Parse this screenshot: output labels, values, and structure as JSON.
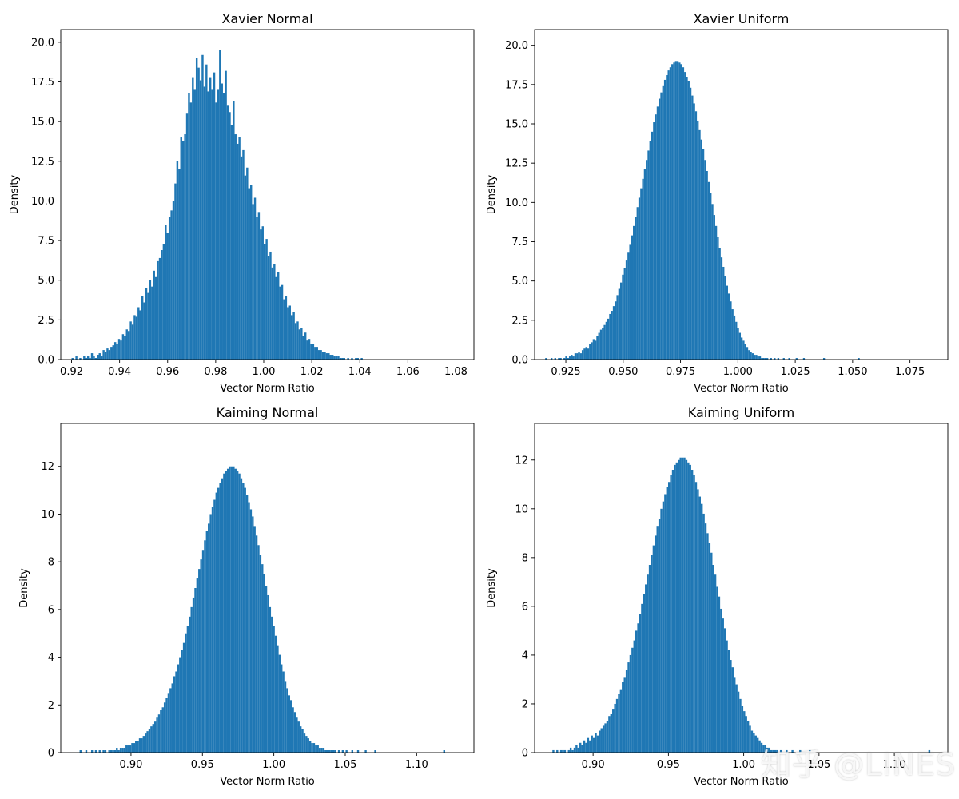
{
  "figure": {
    "bar_color": "#1f77b4",
    "watermark": "知乎 @LINES"
  },
  "chart_data": [
    {
      "type": "bar",
      "title": "Xavier Normal",
      "xlabel": "Vector Norm Ratio",
      "ylabel": "Density",
      "xlim": [
        0.9155,
        1.0875
      ],
      "ylim": [
        0,
        20.8
      ],
      "xticks": [
        0.92,
        0.94,
        0.96,
        0.98,
        1.0,
        1.02,
        1.04,
        1.06,
        1.08
      ],
      "xtick_labels": [
        "0.92",
        "0.94",
        "0.96",
        "0.98",
        "1.00",
        "1.02",
        "1.04",
        "1.06",
        "1.08"
      ],
      "yticks": [
        0,
        2.5,
        5,
        7.5,
        10,
        12.5,
        15,
        17.5,
        20
      ],
      "ytick_labels": [
        "0.0",
        "2.5",
        "5.0",
        "7.5",
        "10.0",
        "12.5",
        "15.0",
        "17.5",
        "20.0"
      ],
      "bins": {
        "start": 0.92,
        "width": 0.000808
      },
      "values": [
        0.1,
        0.0,
        0.2,
        0.0,
        0.1,
        0.0,
        0.2,
        0.1,
        0.2,
        0.1,
        0.4,
        0.2,
        0.1,
        0.3,
        0.4,
        0.2,
        0.6,
        0.5,
        0.7,
        0.6,
        0.8,
        0.9,
        1.1,
        1.0,
        1.3,
        1.2,
        1.6,
        1.5,
        1.9,
        1.8,
        2.4,
        2.2,
        2.8,
        2.7,
        3.3,
        3.1,
        4.0,
        3.6,
        4.5,
        4.2,
        5.0,
        4.6,
        5.6,
        5.2,
        6.2,
        6.4,
        6.9,
        7.3,
        8.5,
        8.0,
        9.0,
        9.4,
        10.0,
        11.1,
        12.5,
        12.0,
        14.0,
        13.8,
        14.2,
        15.5,
        16.8,
        16.2,
        17.8,
        17.0,
        19.0,
        18.4,
        17.6,
        19.2,
        17.2,
        18.6,
        16.9,
        17.8,
        17.0,
        18.1,
        16.2,
        17.0,
        19.5,
        17.4,
        16.8,
        18.2,
        16.0,
        15.6,
        14.8,
        16.3,
        14.2,
        13.6,
        14.0,
        12.8,
        13.2,
        11.6,
        12.1,
        10.8,
        11.0,
        9.8,
        10.2,
        9.0,
        9.3,
        8.2,
        8.4,
        7.3,
        7.6,
        6.5,
        6.8,
        5.8,
        6.0,
        5.2,
        5.5,
        4.6,
        4.7,
        3.8,
        4.0,
        3.3,
        3.4,
        2.8,
        3.0,
        2.3,
        2.4,
        1.9,
        2.0,
        1.5,
        1.7,
        1.2,
        1.3,
        1.0,
        1.0,
        0.8,
        0.8,
        0.6,
        0.6,
        0.5,
        0.5,
        0.4,
        0.4,
        0.3,
        0.3,
        0.2,
        0.2,
        0.2,
        0.1,
        0.1,
        0.1,
        0.0,
        0.1,
        0.0,
        0.1,
        0.0,
        0.1,
        0.1,
        0.0,
        0.1
      ]
    },
    {
      "type": "bar",
      "title": "Xavier Uniform",
      "xlabel": "Vector Norm Ratio",
      "ylabel": "Density",
      "xlim": [
        0.9114,
        1.0915
      ],
      "ylim": [
        0,
        21.0
      ],
      "xticks": [
        0.925,
        0.95,
        0.975,
        1.0,
        1.025,
        1.05,
        1.075
      ],
      "xtick_labels": [
        "0.925",
        "0.950",
        "0.975",
        "1.000",
        "1.025",
        "1.050",
        "1.075"
      ],
      "yticks": [
        0,
        2.5,
        5,
        7.5,
        10,
        12.5,
        15,
        17.5,
        20
      ],
      "ytick_labels": [
        "0.0",
        "2.5",
        "5.0",
        "7.5",
        "10.0",
        "12.5",
        "15.0",
        "17.5",
        "20.0"
      ],
      "bins": {
        "start": 0.916,
        "width": 0.000797
      },
      "values": [
        0.1,
        0.0,
        0.0,
        0.1,
        0.0,
        0.1,
        0.0,
        0.1,
        0.1,
        0.0,
        0.1,
        0.2,
        0.1,
        0.2,
        0.3,
        0.2,
        0.4,
        0.4,
        0.5,
        0.4,
        0.6,
        0.7,
        0.8,
        0.7,
        1.0,
        1.1,
        1.3,
        1.2,
        1.5,
        1.7,
        1.9,
        2.0,
        2.2,
        2.4,
        2.6,
        2.9,
        3.1,
        3.4,
        3.7,
        4.1,
        4.5,
        4.9,
        5.4,
        5.8,
        6.3,
        6.8,
        7.3,
        7.9,
        8.5,
        9.1,
        9.7,
        10.3,
        10.9,
        11.5,
        12.1,
        12.7,
        13.3,
        13.9,
        14.5,
        15.1,
        15.6,
        16.1,
        16.6,
        17.0,
        17.4,
        17.8,
        18.1,
        18.4,
        18.6,
        18.8,
        18.9,
        19.0,
        19.0,
        18.9,
        18.8,
        18.6,
        18.3,
        18.0,
        17.7,
        17.3,
        16.8,
        16.3,
        15.8,
        15.2,
        14.6,
        14.0,
        13.4,
        12.7,
        12.0,
        11.3,
        10.6,
        9.9,
        9.2,
        8.5,
        7.8,
        7.1,
        6.5,
        5.9,
        5.3,
        4.7,
        4.2,
        3.7,
        3.2,
        2.8,
        2.4,
        2.0,
        1.7,
        1.4,
        1.2,
        1.0,
        0.8,
        0.6,
        0.5,
        0.4,
        0.3,
        0.3,
        0.2,
        0.2,
        0.1,
        0.1,
        0.1,
        0.1,
        0.0,
        0.1,
        0.0,
        0.1,
        0.0,
        0.1,
        0.0,
        0.0,
        0.1,
        0.0,
        0.0,
        0.1,
        0.0,
        0.0,
        0.0,
        0.1,
        0.0,
        0.0,
        0.0,
        0.1,
        0.0,
        0.0,
        0.0,
        0.0,
        0.0,
        0.0,
        0.0,
        0.0,
        0.0,
        0.0,
        0.1,
        0.0,
        0.0,
        0.0,
        0.0,
        0.0,
        0.0,
        0.0,
        0.0,
        0.0,
        0.0,
        0.0,
        0.0,
        0.0,
        0.0,
        0.0,
        0.0,
        0.0,
        0.0,
        0.1
      ]
    },
    {
      "type": "bar",
      "title": "Kaiming Normal",
      "xlabel": "Vector Norm Ratio",
      "ylabel": "Density",
      "xlim": [
        0.8508,
        1.1401
      ],
      "ylim": [
        0,
        13.8
      ],
      "xticks": [
        0.9,
        0.95,
        1.0,
        1.05,
        1.1
      ],
      "xtick_labels": [
        "0.90",
        "0.95",
        "1.00",
        "1.05",
        "1.10"
      ],
      "yticks": [
        0,
        2,
        4,
        6,
        8,
        10,
        12
      ],
      "ytick_labels": [
        "0",
        "2",
        "4",
        "6",
        "8",
        "10",
        "12"
      ],
      "bins": {
        "start": 0.864,
        "width": 0.00134
      },
      "values": [
        0.1,
        0.0,
        0.0,
        0.1,
        0.0,
        0.0,
        0.1,
        0.0,
        0.1,
        0.0,
        0.1,
        0.0,
        0.1,
        0.1,
        0.0,
        0.1,
        0.1,
        0.1,
        0.1,
        0.2,
        0.1,
        0.2,
        0.2,
        0.2,
        0.3,
        0.3,
        0.3,
        0.4,
        0.4,
        0.5,
        0.5,
        0.6,
        0.6,
        0.7,
        0.8,
        0.9,
        1.0,
        1.1,
        1.2,
        1.3,
        1.5,
        1.6,
        1.8,
        1.9,
        2.1,
        2.3,
        2.5,
        2.7,
        2.9,
        3.2,
        3.4,
        3.7,
        4.0,
        4.3,
        4.6,
        5.0,
        5.3,
        5.7,
        6.1,
        6.5,
        6.9,
        7.3,
        7.7,
        8.1,
        8.5,
        8.9,
        9.3,
        9.6,
        10.0,
        10.3,
        10.6,
        10.9,
        11.1,
        11.3,
        11.5,
        11.7,
        11.8,
        11.9,
        12.0,
        12.0,
        12.0,
        11.9,
        11.8,
        11.7,
        11.5,
        11.3,
        11.1,
        10.8,
        10.5,
        10.2,
        9.9,
        9.5,
        9.1,
        8.7,
        8.3,
        7.9,
        7.5,
        7.0,
        6.6,
        6.1,
        5.7,
        5.3,
        4.9,
        4.5,
        4.1,
        3.7,
        3.4,
        3.0,
        2.7,
        2.4,
        2.2,
        1.9,
        1.7,
        1.5,
        1.3,
        1.1,
        1.0,
        0.8,
        0.7,
        0.6,
        0.5,
        0.4,
        0.4,
        0.3,
        0.3,
        0.2,
        0.2,
        0.2,
        0.1,
        0.1,
        0.1,
        0.1,
        0.1,
        0.1,
        0.0,
        0.1,
        0.0,
        0.1,
        0.0,
        0.1,
        0.0,
        0.0,
        0.1,
        0.0,
        0.0,
        0.1,
        0.0,
        0.0,
        0.0,
        0.1,
        0.0,
        0.0,
        0.0,
        0.0,
        0.1,
        0.0,
        0.0,
        0.0,
        0.0,
        0.0,
        0.0,
        0.0,
        0.0,
        0.0,
        0.0,
        0.0,
        0.0,
        0.0,
        0.0,
        0.0,
        0.0,
        0.0,
        0.0,
        0.0,
        0.0,
        0.0,
        0.0,
        0.0,
        0.0,
        0.0,
        0.0,
        0.0,
        0.0,
        0.0,
        0.0,
        0.0,
        0.0,
        0.0,
        0.0,
        0.0,
        0.1
      ]
    },
    {
      "type": "bar",
      "title": "Kaiming Uniform",
      "xlabel": "Vector Norm Ratio",
      "ylabel": "Density",
      "xlim": [
        0.8612,
        1.1355
      ],
      "ylim": [
        0,
        13.5
      ],
      "xticks": [
        0.9,
        0.95,
        1.0,
        1.05,
        1.1
      ],
      "xtick_labels": [
        "0.90",
        "0.95",
        "1.00",
        "1.05",
        "1.10"
      ],
      "yticks": [
        0,
        2,
        4,
        6,
        8,
        10,
        12
      ],
      "ytick_labels": [
        "0",
        "2",
        "4",
        "6",
        "8",
        "10",
        "12"
      ],
      "bins": {
        "start": 0.873,
        "width": 0.00128
      },
      "values": [
        0.1,
        0.0,
        0.1,
        0.0,
        0.1,
        0.1,
        0.1,
        0.0,
        0.1,
        0.2,
        0.1,
        0.2,
        0.3,
        0.2,
        0.4,
        0.3,
        0.5,
        0.4,
        0.6,
        0.5,
        0.7,
        0.6,
        0.8,
        0.7,
        0.9,
        1.0,
        1.1,
        1.2,
        1.3,
        1.5,
        1.6,
        1.8,
        2.0,
        2.2,
        2.4,
        2.6,
        2.9,
        3.1,
        3.4,
        3.7,
        4.0,
        4.3,
        4.6,
        5.0,
        5.3,
        5.7,
        6.1,
        6.5,
        6.9,
        7.3,
        7.7,
        8.1,
        8.5,
        8.9,
        9.3,
        9.6,
        10.0,
        10.3,
        10.6,
        10.9,
        11.1,
        11.4,
        11.6,
        11.8,
        11.9,
        12.0,
        12.1,
        12.1,
        12.1,
        12.0,
        11.9,
        11.8,
        11.6,
        11.4,
        11.1,
        10.8,
        10.5,
        10.2,
        9.8,
        9.4,
        9.0,
        8.6,
        8.2,
        7.7,
        7.3,
        6.8,
        6.4,
        5.9,
        5.5,
        5.1,
        4.6,
        4.2,
        3.8,
        3.5,
        3.1,
        2.8,
        2.5,
        2.2,
        1.9,
        1.7,
        1.5,
        1.3,
        1.1,
        0.9,
        0.8,
        0.7,
        0.6,
        0.5,
        0.4,
        0.3,
        0.3,
        0.2,
        0.2,
        0.1,
        0.1,
        0.1,
        0.1,
        0.0,
        0.1,
        0.0,
        0.0,
        0.1,
        0.0,
        0.0,
        0.1,
        0.0,
        0.0,
        0.0,
        0.1,
        0.0,
        0.0,
        0.0,
        0.0,
        0.1,
        0.0,
        0.0,
        0.0,
        0.0,
        0.0,
        0.0,
        0.0,
        0.0,
        0.0,
        0.0,
        0.0,
        0.0,
        0.0,
        0.0,
        0.0,
        0.0,
        0.0,
        0.0,
        0.0,
        0.0,
        0.0,
        0.0,
        0.0,
        0.0,
        0.0,
        0.0,
        0.0,
        0.0,
        0.0,
        0.0,
        0.0,
        0.0,
        0.0,
        0.0,
        0.0,
        0.0,
        0.0,
        0.0,
        0.0,
        0.0,
        0.0,
        0.0,
        0.0,
        0.0,
        0.0,
        0.0,
        0.0,
        0.0,
        0.0,
        0.0,
        0.0,
        0.0,
        0.0,
        0.0,
        0.0,
        0.0,
        0.0,
        0.0,
        0.0,
        0.0,
        0.0,
        0.1
      ]
    }
  ]
}
